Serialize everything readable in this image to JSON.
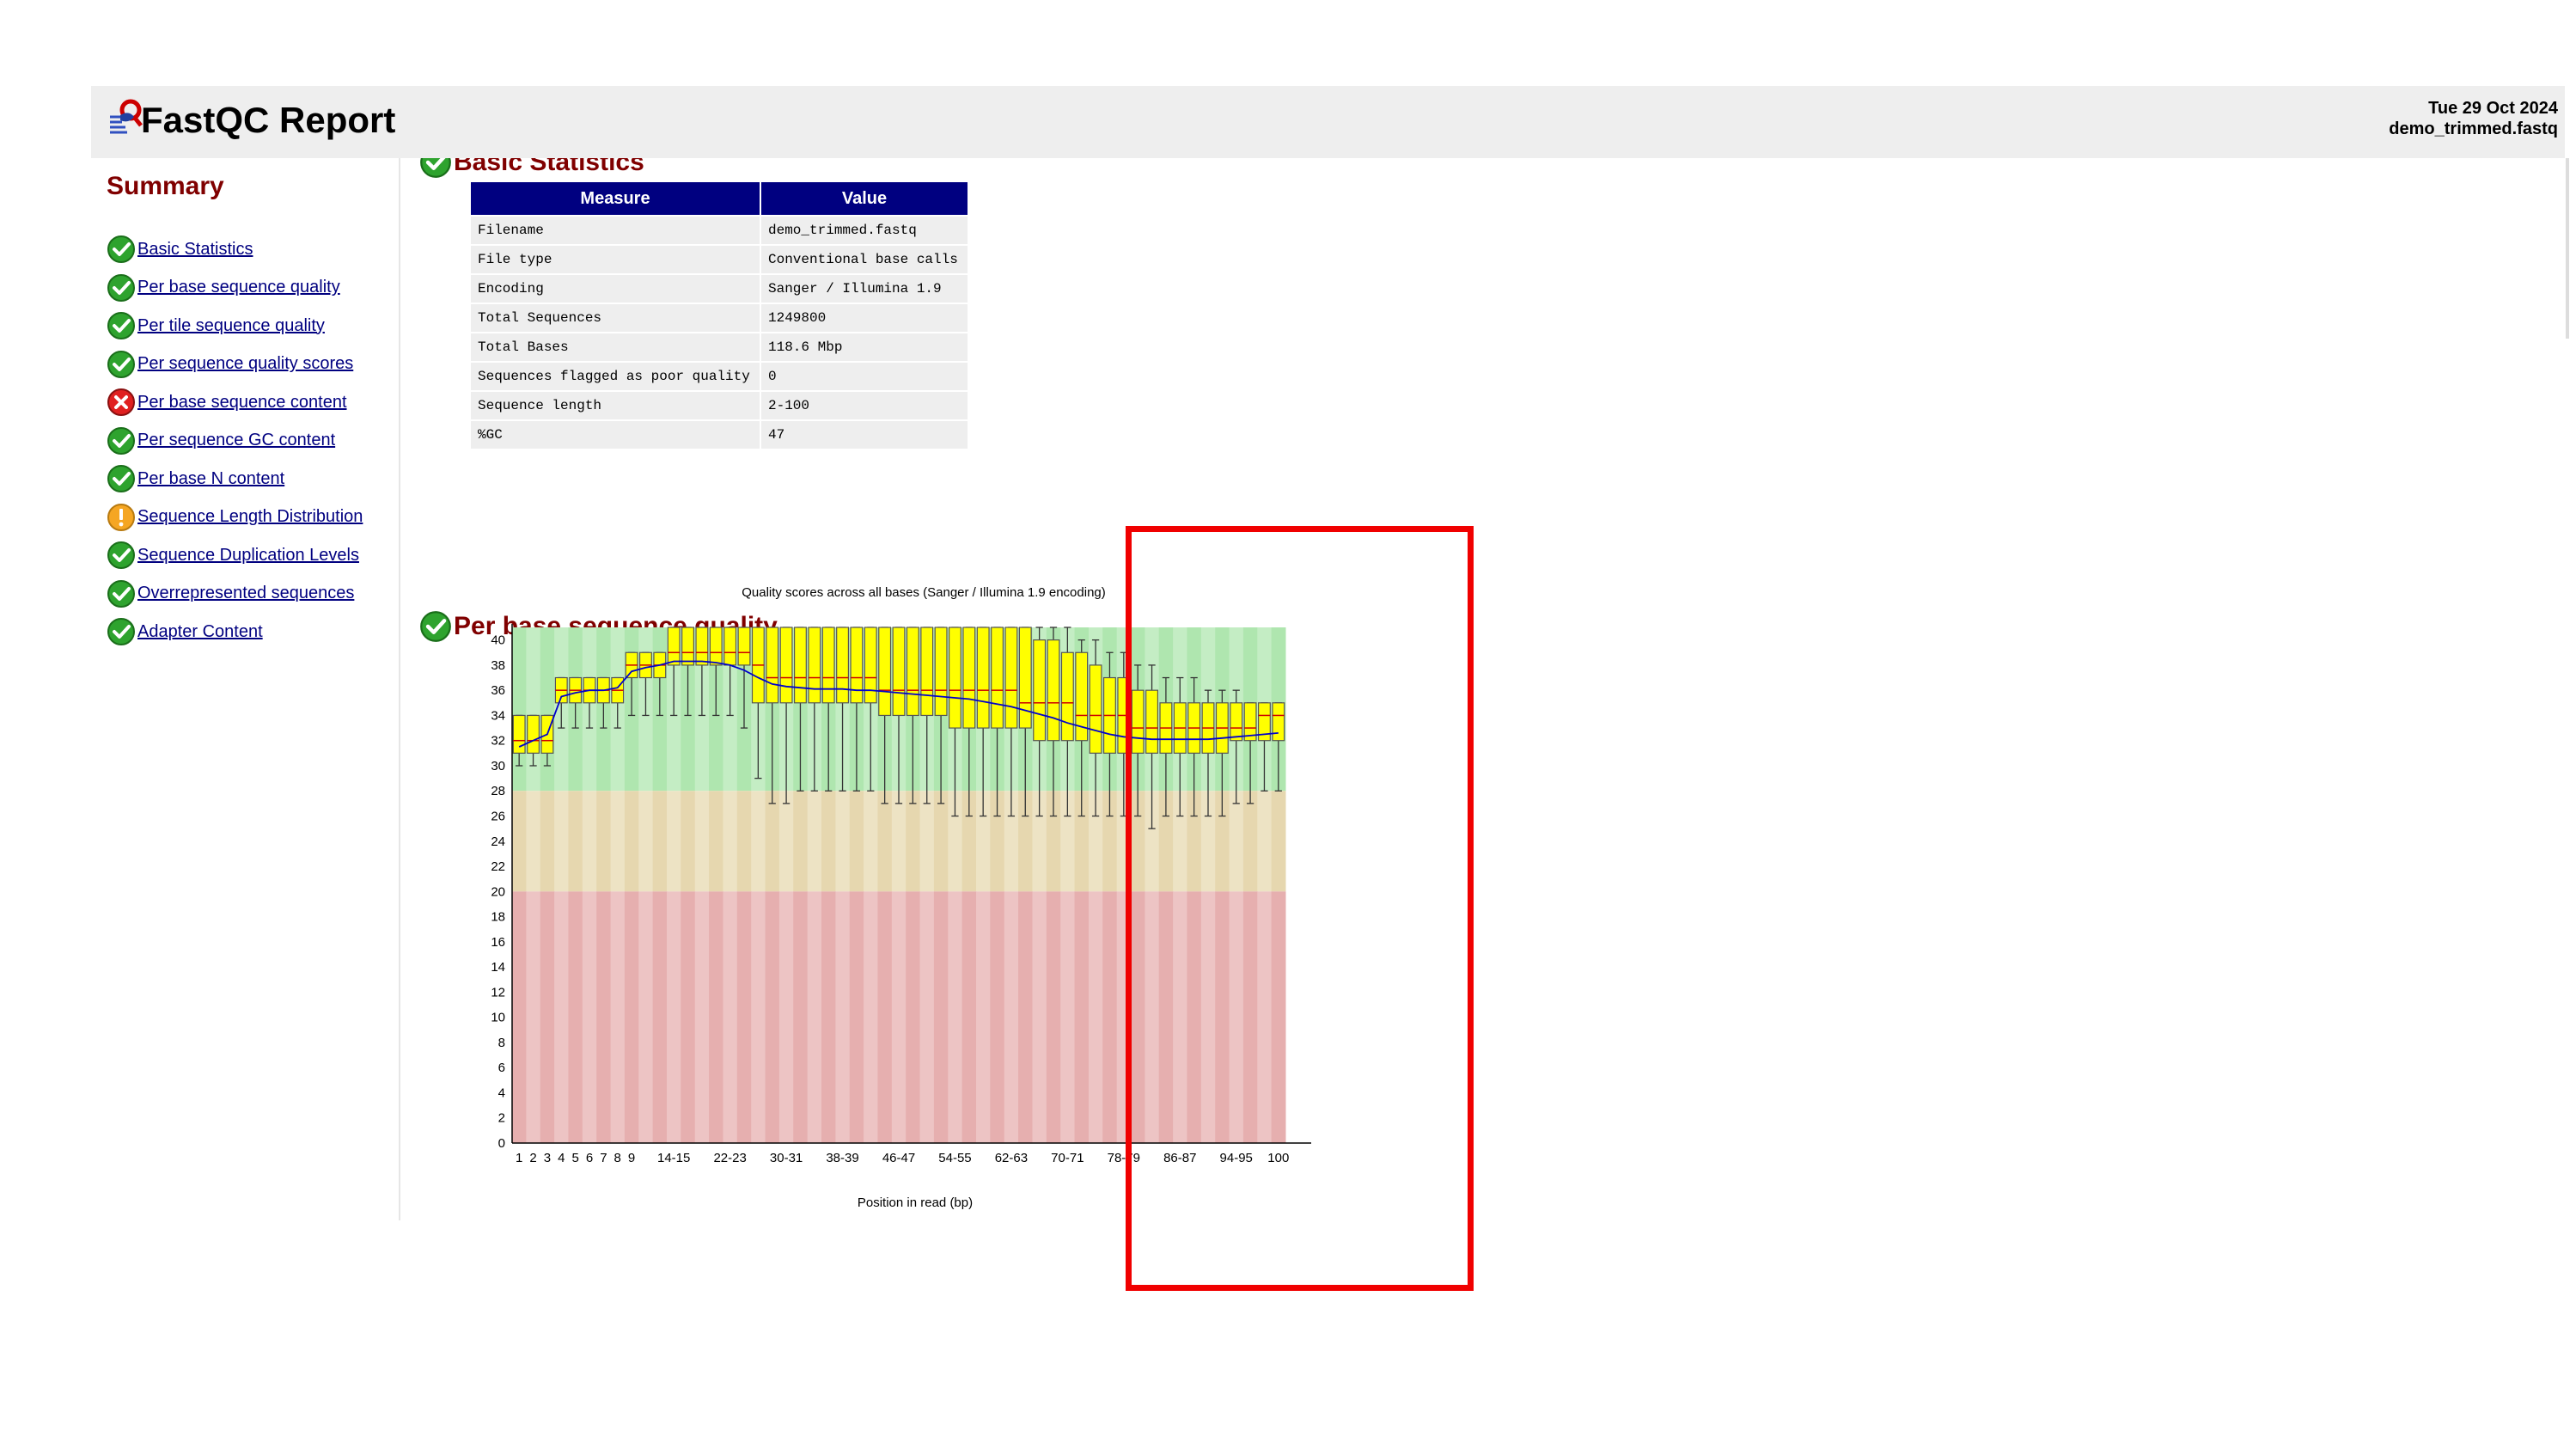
{
  "header": {
    "title": "FastQC Report",
    "date": "Tue 29 Oct 2024",
    "filename": "demo_trimmed.fastq"
  },
  "summary": {
    "title": "Summary",
    "items": [
      {
        "label": "Basic Statistics",
        "status": "pass"
      },
      {
        "label": "Per base sequence quality",
        "status": "pass"
      },
      {
        "label": "Per tile sequence quality",
        "status": "pass"
      },
      {
        "label": "Per sequence quality scores",
        "status": "pass"
      },
      {
        "label": "Per base sequence content",
        "status": "fail"
      },
      {
        "label": "Per sequence GC content",
        "status": "pass"
      },
      {
        "label": "Per base N content",
        "status": "pass"
      },
      {
        "label": "Sequence Length Distribution",
        "status": "warn"
      },
      {
        "label": "Sequence Duplication Levels",
        "status": "pass"
      },
      {
        "label": "Overrepresented sequences",
        "status": "pass"
      },
      {
        "label": "Adapter Content",
        "status": "pass"
      }
    ]
  },
  "basic_stats": {
    "heading": "Basic Statistics",
    "columns": [
      "Measure",
      "Value"
    ],
    "rows": [
      [
        "Filename",
        "demo_trimmed.fastq"
      ],
      [
        "File type",
        "Conventional base calls"
      ],
      [
        "Encoding",
        "Sanger / Illumina 1.9"
      ],
      [
        "Total Sequences",
        "1249800"
      ],
      [
        "Total Bases",
        "118.6 Mbp"
      ],
      [
        "Sequences flagged as poor quality",
        "0"
      ],
      [
        "Sequence length",
        "2-100"
      ],
      [
        "%GC",
        "47"
      ]
    ]
  },
  "quality_section": {
    "heading": "Per base sequence quality"
  },
  "chart_data": {
    "type": "box",
    "title": "Quality scores across all bases (Sanger / Illumina 1.9 encoding)",
    "xlabel": "Position in read (bp)",
    "ylabel": "",
    "ylim": [
      0,
      41
    ],
    "yticks": [
      0,
      2,
      4,
      6,
      8,
      10,
      12,
      14,
      16,
      18,
      20,
      22,
      24,
      26,
      28,
      30,
      32,
      34,
      36,
      38,
      40
    ],
    "zones": [
      {
        "name": "good",
        "from": 28,
        "to": 41,
        "colors": [
          "#afe6af",
          "#c4edc4"
        ]
      },
      {
        "name": "reasonable",
        "from": 20,
        "to": 28,
        "colors": [
          "#e6d7af",
          "#ede3c4"
        ]
      },
      {
        "name": "poor",
        "from": 0,
        "to": 20,
        "colors": [
          "#e6afaf",
          "#edc4c4"
        ]
      }
    ],
    "box_fill": "#ffff00",
    "box_stroke": "#555555",
    "mean_line_color": "#0000cc",
    "categories": [
      "1",
      "2",
      "3",
      "4",
      "5",
      "6",
      "7",
      "8",
      "9",
      "10-11",
      "12-13",
      "14-15",
      "16-17",
      "18-19",
      "20-21",
      "22-23",
      "24-25",
      "26-27",
      "28-29",
      "30-31",
      "32-33",
      "34-35",
      "36-37",
      "38-39",
      "40-41",
      "42-43",
      "44-45",
      "46-47",
      "48-49",
      "50-51",
      "52-53",
      "54-55",
      "56-57",
      "58-59",
      "60-61",
      "62-63",
      "64-65",
      "66-67",
      "68-69",
      "70-71",
      "72-73",
      "74-75",
      "76-77",
      "78-79",
      "80-81",
      "82-83",
      "84-85",
      "86-87",
      "88-89",
      "90-91",
      "92-93",
      "94-95",
      "96-97",
      "98-99",
      "100"
    ],
    "xtick_labels": [
      "1",
      "2",
      "3",
      "4",
      "5",
      "6",
      "7",
      "8",
      "9",
      "14-15",
      "22-23",
      "30-31",
      "38-39",
      "46-47",
      "54-55",
      "62-63",
      "70-71",
      "78-79",
      "86-87",
      "94-95",
      "100"
    ],
    "boxes": [
      [
        30,
        31,
        32,
        34,
        34
      ],
      [
        30,
        31,
        32,
        34,
        34
      ],
      [
        30,
        31,
        32,
        34,
        34
      ],
      [
        33,
        35,
        36,
        37,
        37
      ],
      [
        33,
        35,
        36,
        37,
        37
      ],
      [
        33,
        35,
        36,
        37,
        37
      ],
      [
        33,
        35,
        36,
        37,
        37
      ],
      [
        33,
        35,
        36,
        37,
        37
      ],
      [
        34,
        37,
        38,
        39,
        39
      ],
      [
        34,
        37,
        38,
        39,
        39
      ],
      [
        34,
        37,
        38,
        39,
        39
      ],
      [
        34,
        38,
        39,
        41,
        41
      ],
      [
        34,
        38,
        39,
        41,
        41
      ],
      [
        34,
        38,
        39,
        41,
        41
      ],
      [
        34,
        38,
        39,
        41,
        41
      ],
      [
        34,
        38,
        39,
        41,
        41
      ],
      [
        33,
        38,
        39,
        41,
        41
      ],
      [
        29,
        35,
        38,
        41,
        41
      ],
      [
        27,
        35,
        37,
        41,
        41
      ],
      [
        27,
        35,
        37,
        41,
        41
      ],
      [
        28,
        35,
        37,
        41,
        41
      ],
      [
        28,
        35,
        37,
        41,
        41
      ],
      [
        28,
        35,
        37,
        41,
        41
      ],
      [
        28,
        35,
        37,
        41,
        41
      ],
      [
        28,
        35,
        37,
        41,
        41
      ],
      [
        28,
        35,
        37,
        41,
        41
      ],
      [
        27,
        34,
        36,
        41,
        41
      ],
      [
        27,
        34,
        36,
        41,
        41
      ],
      [
        27,
        34,
        36,
        41,
        41
      ],
      [
        27,
        34,
        36,
        41,
        41
      ],
      [
        27,
        34,
        36,
        41,
        41
      ],
      [
        26,
        33,
        36,
        41,
        41
      ],
      [
        26,
        33,
        36,
        41,
        41
      ],
      [
        26,
        33,
        36,
        41,
        41
      ],
      [
        26,
        33,
        36,
        41,
        41
      ],
      [
        26,
        33,
        36,
        41,
        41
      ],
      [
        26,
        33,
        35,
        41,
        41
      ],
      [
        26,
        32,
        35,
        40,
        41
      ],
      [
        26,
        32,
        35,
        40,
        41
      ],
      [
        26,
        32,
        35,
        39,
        41
      ],
      [
        26,
        32,
        34,
        39,
        40
      ],
      [
        26,
        31,
        34,
        38,
        40
      ],
      [
        26,
        31,
        34,
        37,
        39
      ],
      [
        26,
        31,
        34,
        37,
        39
      ],
      [
        26,
        31,
        33,
        36,
        38
      ],
      [
        25,
        31,
        33,
        36,
        38
      ],
      [
        26,
        31,
        33,
        35,
        37
      ],
      [
        26,
        31,
        33,
        35,
        37
      ],
      [
        26,
        31,
        33,
        35,
        37
      ],
      [
        26,
        31,
        33,
        35,
        36
      ],
      [
        26,
        31,
        33,
        35,
        36
      ],
      [
        27,
        32,
        33,
        35,
        36
      ],
      [
        27,
        32,
        33,
        35,
        35
      ],
      [
        28,
        32,
        34,
        35,
        35
      ],
      [
        28,
        32,
        34,
        35,
        35
      ]
    ],
    "box_order": [
      "whisker_low",
      "q1",
      "median",
      "q3",
      "whisker_high"
    ],
    "mean": [
      31.5,
      32,
      32.5,
      35.5,
      35.8,
      36,
      36,
      36.2,
      37.5,
      37.8,
      38,
      38.3,
      38.3,
      38.3,
      38.2,
      38,
      37.6,
      37,
      36.5,
      36.3,
      36.2,
      36.1,
      36.1,
      36.1,
      36,
      36,
      35.9,
      35.8,
      35.7,
      35.6,
      35.5,
      35.4,
      35.3,
      35.1,
      34.9,
      34.7,
      34.4,
      34.1,
      33.8,
      33.4,
      33.1,
      32.8,
      32.5,
      32.3,
      32.2,
      32.1,
      32.1,
      32.1,
      32.1,
      32.1,
      32.2,
      32.3,
      32.4,
      32.5,
      32.6
    ]
  }
}
